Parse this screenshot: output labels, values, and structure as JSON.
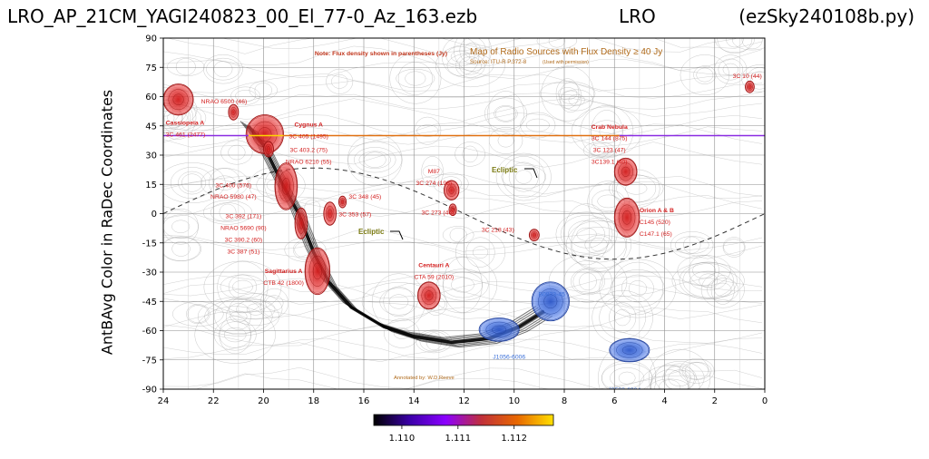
{
  "header": {
    "left": "LRO_AP_21CM_YAGI240823_00_El_77-0_Az_163.ezb",
    "middle": "LRO",
    "right": "(ezSky240108b.py)"
  },
  "chart_data": {
    "type": "heatmap",
    "ylabel": "AntBAvg Color in RaDec Coordinates",
    "xlabel": "",
    "x_ticks": [
      "24",
      "22",
      "20",
      "18",
      "16",
      "14",
      "12",
      "10",
      "8",
      "6",
      "4",
      "2",
      "0"
    ],
    "y_ticks": [
      "90",
      "75",
      "60",
      "45",
      "30",
      "15",
      "0",
      "-15",
      "-30",
      "-45",
      "-60",
      "-75",
      "-90"
    ],
    "xlim": [
      24,
      0
    ],
    "ylim": [
      -90,
      90
    ],
    "grid": true,
    "colorbar": {
      "ticks": [
        "1.110",
        "1.111",
        "1.112"
      ],
      "colors": [
        "#000000",
        "#3b00a8",
        "#8b00ff",
        "#c0303a",
        "#e86800",
        "#ffe000"
      ]
    },
    "measured_track": {
      "dec": 40,
      "segments": [
        {
          "ra_from": 24,
          "ra_to": 20.6,
          "color": "#8a2be2"
        },
        {
          "ra_from": 20.6,
          "ra_to": 19.2,
          "color": "#ffd700"
        },
        {
          "ra_from": 19.2,
          "ra_to": 5.8,
          "color": "#e07010"
        },
        {
          "ra_from": 5.8,
          "ra_to": 0,
          "color": "#8a2be2"
        }
      ]
    },
    "overlay": {
      "title": "Map of Radio Sources with Flux Density ≥ 40 Jy",
      "source": "Source: ITU-R P.372-8",
      "source_note": "(Used with permission)",
      "note": "Note: Flux density shown in parentheses (Jy)",
      "annotated_by": "Annotated by: W.D.Reeve",
      "ecliptic_label": "Ecliptic",
      "labels": [
        {
          "ra": 23.0,
          "dec": 58,
          "text": "NRAO 6500 (46)",
          "color": "#d42020",
          "anchor": "start",
          "shift": 14
        },
        {
          "ra": 23.9,
          "dec": 47,
          "text": "Cassiopeia A",
          "color": "#d42020",
          "anchor": "start",
          "bold": true
        },
        {
          "ra": 23.9,
          "dec": 41,
          "text": "3C 461 (2477)",
          "color": "#d42020",
          "anchor": "start"
        },
        {
          "ra": 18.2,
          "dec": 46,
          "text": "Cygnus A",
          "color": "#d42020",
          "anchor": "middle",
          "bold": true
        },
        {
          "ra": 18.2,
          "dec": 40,
          "text": "3C 405 (1495)",
          "color": "#d42020",
          "anchor": "middle"
        },
        {
          "ra": 18.2,
          "dec": 33,
          "text": "3C 403.2 (75)",
          "color": "#d42020",
          "anchor": "middle"
        },
        {
          "ra": 18.2,
          "dec": 27,
          "text": "NRAO 6210 (55)",
          "color": "#d42020",
          "anchor": "middle"
        },
        {
          "ra": 21.2,
          "dec": 15,
          "text": "3C 400 (576)",
          "color": "#d42020",
          "anchor": "middle"
        },
        {
          "ra": 21.2,
          "dec": 9,
          "text": "NRAO 5980 (47)",
          "color": "#d42020",
          "anchor": "middle"
        },
        {
          "ra": 20.8,
          "dec": -1,
          "text": "3C 392 (171)",
          "color": "#d42020",
          "anchor": "middle"
        },
        {
          "ra": 20.8,
          "dec": -7,
          "text": "NRAO 5690 (90)",
          "color": "#d42020",
          "anchor": "middle"
        },
        {
          "ra": 20.8,
          "dec": -13,
          "text": "3C 390.2 (60)",
          "color": "#d42020",
          "anchor": "middle"
        },
        {
          "ra": 20.8,
          "dec": -19,
          "text": "3C 387 (51)",
          "color": "#d42020",
          "anchor": "middle"
        },
        {
          "ra": 19.2,
          "dec": -29,
          "text": "Sagittarius A",
          "color": "#d42020",
          "anchor": "middle",
          "bold": true
        },
        {
          "ra": 19.2,
          "dec": -35,
          "text": "CTB 42 (1800)",
          "color": "#d42020",
          "anchor": "middle"
        },
        {
          "ra": 16.6,
          "dec": 9,
          "text": "3C 348 (45)",
          "color": "#d42020",
          "anchor": "start"
        },
        {
          "ra": 17.0,
          "dec": 0,
          "text": "3C 353 (57)",
          "color": "#d42020",
          "anchor": "start"
        },
        {
          "ra": 13.2,
          "dec": 22,
          "text": "M87",
          "color": "#d42020",
          "anchor": "middle"
        },
        {
          "ra": 13.2,
          "dec": 16,
          "text": "3C 274 (198)",
          "color": "#d42020",
          "anchor": "middle"
        },
        {
          "ra": 13.7,
          "dec": 1,
          "text": "3C 273 (46)",
          "color": "#d42020",
          "anchor": "start"
        },
        {
          "ra": 11.3,
          "dec": -8,
          "text": "3C 218 (43)",
          "color": "#d42020",
          "anchor": "start"
        },
        {
          "ra": 13.2,
          "dec": -26,
          "text": "Centauri A",
          "color": "#d42020",
          "anchor": "middle",
          "bold": true
        },
        {
          "ra": 13.2,
          "dec": -32,
          "text": "CTA 59 (2010)",
          "color": "#d42020",
          "anchor": "middle"
        },
        {
          "ra": 6.2,
          "dec": 45,
          "text": "Crab Nebula",
          "color": "#d42020",
          "anchor": "middle",
          "bold": true
        },
        {
          "ra": 6.2,
          "dec": 39,
          "text": "3C 144 (875)",
          "color": "#d42020",
          "anchor": "middle"
        },
        {
          "ra": 6.2,
          "dec": 33,
          "text": "3C 123 (47)",
          "color": "#d42020",
          "anchor": "middle"
        },
        {
          "ra": 6.2,
          "dec": 27,
          "text": "3C139.1 (40)",
          "color": "#d42020",
          "anchor": "middle"
        },
        {
          "ra": 5.0,
          "dec": 2,
          "text": "Orion A & B",
          "color": "#d42020",
          "anchor": "start",
          "bold": true
        },
        {
          "ra": 5.0,
          "dec": -4,
          "text": "C145 (520)",
          "color": "#d42020",
          "anchor": "start"
        },
        {
          "ra": 5.0,
          "dec": -10,
          "text": "C147.1 (65)",
          "color": "#d42020",
          "anchor": "start"
        },
        {
          "ra": 0.7,
          "dec": 71,
          "text": "3C 10 (44)",
          "color": "#d42020",
          "anchor": "middle"
        },
        {
          "ra": 8.5,
          "dec": -41,
          "text": "B0833-45",
          "color": "#3a6fd8",
          "anchor": "middle"
        },
        {
          "ra": 10.2,
          "dec": -73,
          "text": "J1056-6006",
          "color": "#3a6fd8",
          "anchor": "middle"
        },
        {
          "ra": 5.6,
          "dec": -90,
          "text": "J0538-6904",
          "color": "#3a6fd8",
          "anchor": "middle",
          "shift": 0
        }
      ],
      "sources": [
        {
          "ra": 23.4,
          "dec": 58.5,
          "rx": 0.6,
          "ry": 8,
          "color": "red"
        },
        {
          "ra": 21.2,
          "dec": 52,
          "rx": 0.2,
          "ry": 4,
          "color": "red"
        },
        {
          "ra": 19.95,
          "dec": 40.7,
          "rx": 0.75,
          "ry": 10,
          "color": "red"
        },
        {
          "ra": 19.8,
          "dec": 33,
          "rx": 0.2,
          "ry": 4,
          "color": "red"
        },
        {
          "ra": 19.1,
          "dec": 14,
          "rx": 0.45,
          "ry": 12,
          "color": "red"
        },
        {
          "ra": 18.5,
          "dec": -5,
          "rx": 0.25,
          "ry": 8,
          "color": "red"
        },
        {
          "ra": 17.85,
          "dec": -29.5,
          "rx": 0.5,
          "ry": 12,
          "color": "red"
        },
        {
          "ra": 17.35,
          "dec": 0,
          "rx": 0.25,
          "ry": 6,
          "color": "red"
        },
        {
          "ra": 16.85,
          "dec": 6,
          "rx": 0.15,
          "ry": 3,
          "color": "red"
        },
        {
          "ra": 12.5,
          "dec": 12,
          "rx": 0.3,
          "ry": 5,
          "color": "red"
        },
        {
          "ra": 12.45,
          "dec": 2,
          "rx": 0.15,
          "ry": 3,
          "color": "red"
        },
        {
          "ra": 9.2,
          "dec": -11,
          "rx": 0.2,
          "ry": 3,
          "color": "red"
        },
        {
          "ra": 13.4,
          "dec": -42,
          "rx": 0.45,
          "ry": 7,
          "color": "red"
        },
        {
          "ra": 5.55,
          "dec": 21.5,
          "rx": 0.45,
          "ry": 7,
          "color": "red"
        },
        {
          "ra": 5.5,
          "dec": -2,
          "rx": 0.5,
          "ry": 10,
          "color": "red"
        },
        {
          "ra": 0.6,
          "dec": 65,
          "rx": 0.18,
          "ry": 3,
          "color": "red"
        },
        {
          "ra": 8.55,
          "dec": -45,
          "rx": 0.75,
          "ry": 10,
          "color": "blue"
        },
        {
          "ra": 10.6,
          "dec": -59.5,
          "rx": 0.8,
          "ry": 6,
          "color": "blue"
        },
        {
          "ra": 5.4,
          "dec": -70,
          "rx": 0.8,
          "ry": 6,
          "color": "blue"
        }
      ]
    }
  }
}
